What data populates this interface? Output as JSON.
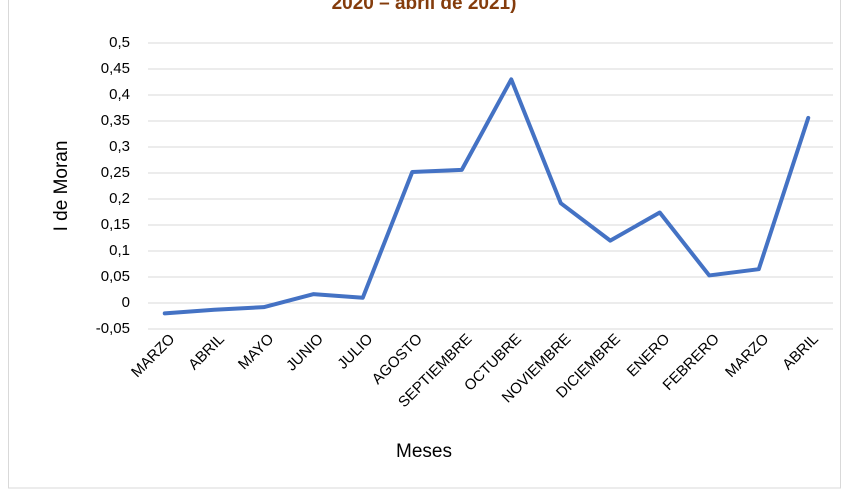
{
  "chart_data": {
    "type": "line",
    "title": "2020 – abril de 2021)",
    "x_label": "Meses",
    "y_label": "I de Moran",
    "categories": [
      "MARZO",
      "ABRIL",
      "MAYO",
      "JUNIO",
      "JULIO",
      "AGOSTO",
      "SEPTIEMBRE",
      "OCTUBRE",
      "NOVIEMBRE",
      "DICIEMBRE",
      "ENERO",
      "FEBRERO",
      "MARZO",
      "ABRIL"
    ],
    "series": [
      {
        "name": "I de Moran",
        "color": "#4472c4",
        "values": [
          -0.02,
          -0.013,
          -0.008,
          0.017,
          0.01,
          0.252,
          0.256,
          0.43,
          0.192,
          0.12,
          0.174,
          0.053,
          0.065,
          0.356
        ]
      }
    ],
    "ylim": [
      -0.05,
      0.5
    ],
    "yticks": [
      {
        "value": -0.05,
        "label": "-0,05"
      },
      0,
      {
        "value": 0.05,
        "label": "0,05"
      },
      {
        "value": 0.1,
        "label": "0,1"
      },
      {
        "value": 0.15,
        "label": "0,15"
      },
      {
        "value": 0.2,
        "label": "0,2"
      },
      {
        "value": 0.25,
        "label": "0,25"
      },
      {
        "value": 0.3,
        "label": "0,3"
      },
      {
        "value": 0.35,
        "label": "0,35"
      },
      {
        "value": 0.4,
        "label": "0,4"
      },
      {
        "value": 0.45,
        "label": "0,45"
      },
      {
        "value": 0.5,
        "label": "0,5"
      }
    ],
    "grid": true
  }
}
